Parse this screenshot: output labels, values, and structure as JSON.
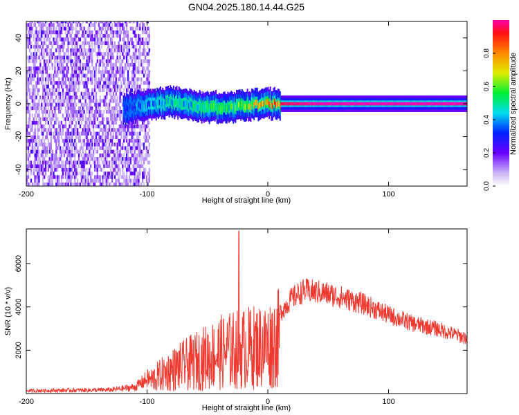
{
  "title": "GN04.2025.180.14.44.G25",
  "chart_data": [
    {
      "type": "heatmap",
      "xlabel": "Height of straight line (km)",
      "ylabel": "Frequency (Hz)",
      "xlim": [
        -200,
        165
      ],
      "ylim": [
        -50,
        50
      ],
      "x_ticks": [
        "-200",
        "-100",
        "0",
        "100"
      ],
      "y_ticks": [
        "-40",
        "-20",
        "0",
        "20",
        "40"
      ],
      "colorbar": {
        "label": "Normalized spectral amplitude",
        "range": [
          0,
          1
        ],
        "ticks": [
          "0.0",
          "0.2",
          "0.4",
          "0.6",
          "0.8"
        ]
      },
      "noise_region_x": [
        -200,
        -98
      ],
      "signal_band": [
        {
          "x": -120,
          "freq": -4,
          "amp": 0.35
        },
        {
          "x": -105,
          "freq": -1,
          "amp": 0.4
        },
        {
          "x": -95,
          "freq": 0,
          "amp": 0.45
        },
        {
          "x": -80,
          "freq": 1,
          "amp": 0.5
        },
        {
          "x": -65,
          "freq": -1,
          "amp": 0.5
        },
        {
          "x": -50,
          "freq": -2,
          "amp": 0.55
        },
        {
          "x": -35,
          "freq": -2,
          "amp": 0.55
        },
        {
          "x": -20,
          "freq": -1,
          "amp": 0.65
        },
        {
          "x": -5,
          "freq": 0,
          "amp": 0.8
        },
        {
          "x": 10,
          "freq": 0,
          "amp": 0.95
        },
        {
          "x": 40,
          "freq": 0,
          "amp": 1.0
        },
        {
          "x": 80,
          "freq": 0,
          "amp": 1.0
        },
        {
          "x": 120,
          "freq": 0,
          "amp": 1.0
        },
        {
          "x": 165,
          "freq": 0,
          "amp": 1.0
        }
      ]
    },
    {
      "type": "line",
      "xlabel": "Height of straight line (km)",
      "ylabel": "SNR (10 * v/v)",
      "xlim": [
        -200,
        165
      ],
      "ylim": [
        0,
        7600
      ],
      "x_ticks": [
        "-200",
        "-100",
        "0",
        "100"
      ],
      "y_ticks": [
        "2000",
        "4000",
        "6000"
      ],
      "color": "#ee3a30",
      "envelope": [
        {
          "x": -200,
          "y": 150
        },
        {
          "x": -130,
          "y": 200
        },
        {
          "x": -110,
          "y": 350
        },
        {
          "x": -95,
          "y": 1000
        },
        {
          "x": -80,
          "y": 1600
        },
        {
          "x": -60,
          "y": 2200
        },
        {
          "x": -40,
          "y": 2800
        },
        {
          "x": -26,
          "y": 3000
        },
        {
          "x": -10,
          "y": 3200
        },
        {
          "x": 0,
          "y": 3300
        },
        {
          "x": 10,
          "y": 3800
        },
        {
          "x": 20,
          "y": 4500
        },
        {
          "x": 30,
          "y": 4850
        },
        {
          "x": 45,
          "y": 4750
        },
        {
          "x": 60,
          "y": 4550
        },
        {
          "x": 80,
          "y": 4200
        },
        {
          "x": 100,
          "y": 3700
        },
        {
          "x": 120,
          "y": 3300
        },
        {
          "x": 140,
          "y": 3050
        },
        {
          "x": 165,
          "y": 2600
        }
      ],
      "peak": {
        "x": -24,
        "y": 7500
      }
    }
  ]
}
